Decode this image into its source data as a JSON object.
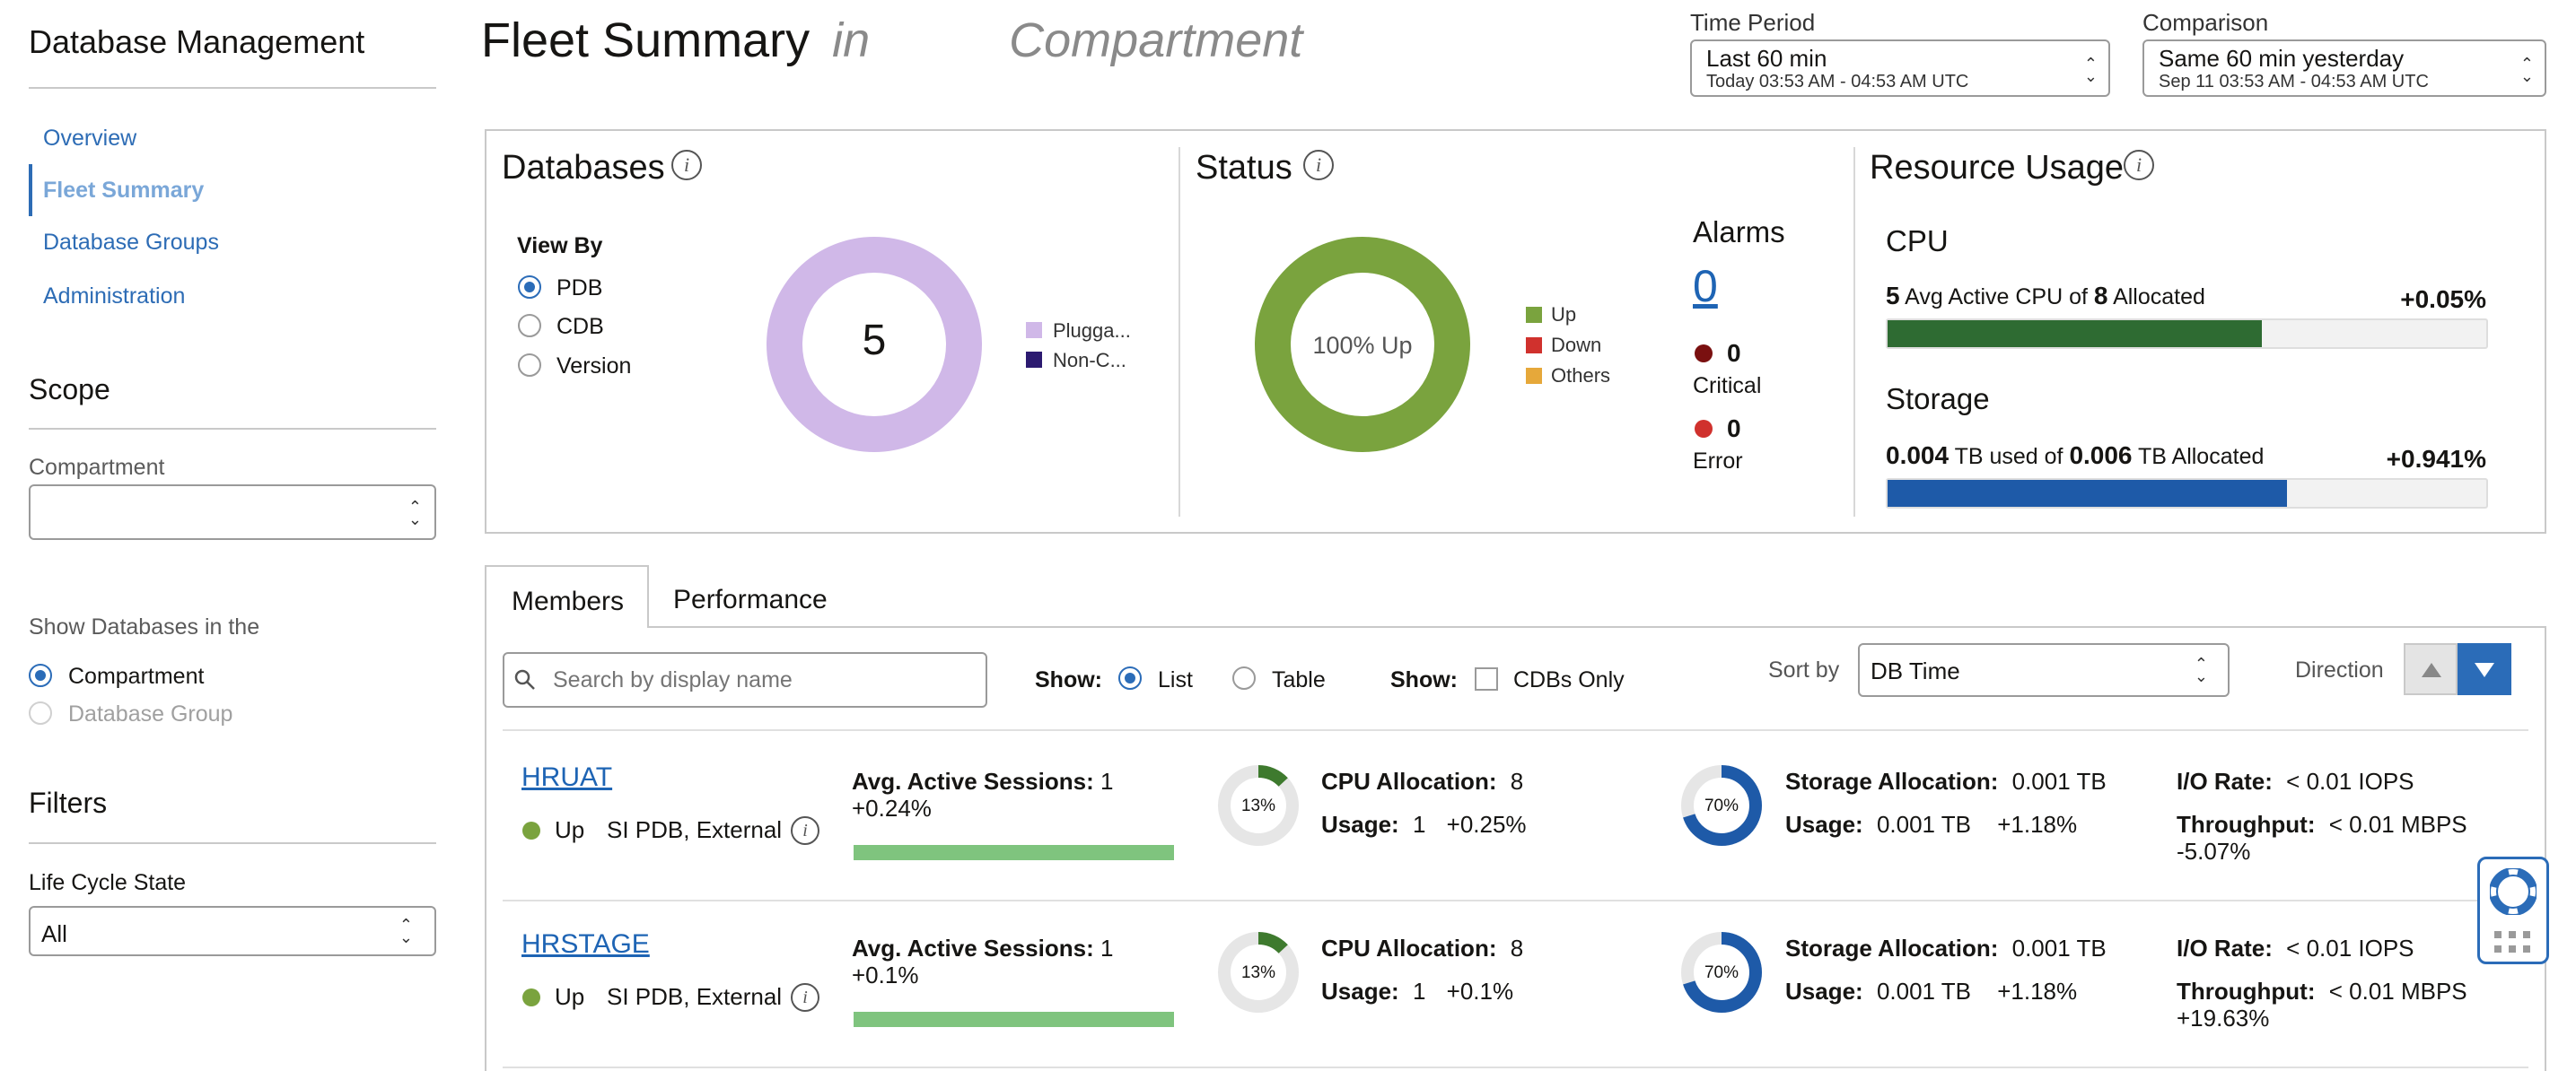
{
  "sidebar": {
    "title": "Database Management",
    "nav": [
      {
        "label": "Overview"
      },
      {
        "label": "Fleet Summary"
      },
      {
        "label": "Database Groups"
      },
      {
        "label": "Administration"
      }
    ],
    "scope_title": "Scope",
    "compartment_label": "Compartment",
    "compartment_value": "",
    "show_db_label": "Show Databases in the",
    "show_options": [
      "Compartment",
      "Database Group"
    ],
    "filters_title": "Filters",
    "lifecycle_label": "Life Cycle State",
    "lifecycle_value": "All"
  },
  "header": {
    "title": "Fleet Summary",
    "title_in": "in",
    "title_compartment": "Compartment",
    "time_period": {
      "label": "Time Period",
      "value": "Last 60 min",
      "sub": "Today 03:53 AM - 04:53 AM UTC"
    },
    "comparison": {
      "label": "Comparison",
      "value": "Same 60 min yesterday",
      "sub": "Sep 11 03:53 AM - 04:53 AM UTC"
    }
  },
  "databases": {
    "title": "Databases",
    "view_by_label": "View By",
    "view_by": [
      "PDB",
      "CDB",
      "Version"
    ],
    "count": "5",
    "legend": [
      {
        "label": "Plugga...",
        "color": "#d0b8e8"
      },
      {
        "label": "Non-C...",
        "color": "#2c1a70"
      }
    ]
  },
  "status": {
    "title": "Status",
    "donut_label": "100% Up",
    "legend": [
      {
        "label": "Up",
        "color": "#7aa33e"
      },
      {
        "label": "Down",
        "color": "#d0312d"
      },
      {
        "label": "Others",
        "color": "#e6a83a"
      }
    ],
    "alarms_title": "Alarms",
    "alarms_count": "0",
    "critical_count": "0",
    "critical_label": "Critical",
    "error_count": "0",
    "error_label": "Error"
  },
  "resource": {
    "title": "Resource Usage",
    "cpu": {
      "title": "CPU",
      "value": "5",
      "t1": "Avg Active CPU of",
      "alloc": "8",
      "t2": "Allocated",
      "change": "+0.05%",
      "fill": 0.625
    },
    "storage": {
      "title": "Storage",
      "value": "0.004",
      "t1": "TB used of",
      "alloc": "0.006",
      "t2": "TB Allocated",
      "change": "+0.941%",
      "fill": 0.667
    }
  },
  "tabs": {
    "members": "Members",
    "performance": "Performance"
  },
  "toolbar": {
    "search_placeholder": "Search by display name",
    "show_label": "Show:",
    "list": "List",
    "table": "Table",
    "show2_label": "Show:",
    "cdbs_only": "CDBs Only",
    "sort_by": "Sort by",
    "sort_value": "DB Time",
    "direction": "Direction"
  },
  "members": [
    {
      "name": "HRUAT",
      "status": "Up",
      "type": "SI PDB, External",
      "aas_label": "Avg. Active Sessions:",
      "aas_value": "1",
      "aas_change": "+0.24%",
      "cpu_pct": "13%",
      "cpu_alloc_label": "CPU Allocation:",
      "cpu_alloc": "8",
      "usage_label": "Usage:",
      "cpu_usage": "1",
      "cpu_change": "+0.25%",
      "st_pct": "70%",
      "st_alloc_label": "Storage Allocation:",
      "st_alloc": "0.001 TB",
      "st_usage_label": "Usage:",
      "st_usage": "0.001 TB",
      "st_change": "+1.18%",
      "io_label": "I/O Rate:",
      "io": "< 0.01 IOPS",
      "tp_label": "Throughput:",
      "tp": "< 0.01 MBPS",
      "tp_change": "-5.07%"
    },
    {
      "name": "HRSTAGE",
      "status": "Up",
      "type": "SI PDB, External",
      "aas_label": "Avg. Active Sessions:",
      "aas_value": "1",
      "aas_change": "+0.1%",
      "cpu_pct": "13%",
      "cpu_alloc_label": "CPU Allocation:",
      "cpu_alloc": "8",
      "usage_label": "Usage:",
      "cpu_usage": "1",
      "cpu_change": "+0.1%",
      "st_pct": "70%",
      "st_alloc_label": "Storage Allocation:",
      "st_alloc": "0.001 TB",
      "st_usage_label": "Usage:",
      "st_usage": "0.001 TB",
      "st_change": "+1.18%",
      "io_label": "I/O Rate:",
      "io": "< 0.01 IOPS",
      "tp_label": "Throughput:",
      "tp": "< 0.01 MBPS",
      "tp_change": "+19.63%"
    }
  ]
}
